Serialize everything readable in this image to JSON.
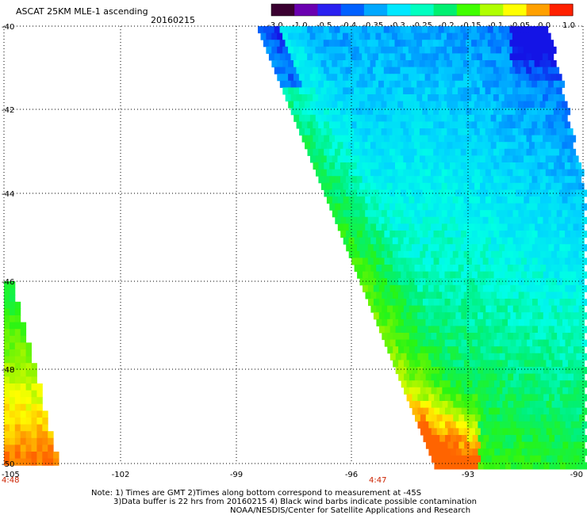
{
  "header": {
    "title": "ASCAT 25KM MLE-1 ascending",
    "date": "20160215"
  },
  "colorbar": {
    "labels": [
      "-3.0",
      "-1.0",
      "-0.5",
      "-0.4",
      "-0.35",
      "-0.3",
      "-0.25",
      "-0.2",
      "-0.15",
      "-0.1",
      "-0.05",
      "0.0",
      "1.0"
    ],
    "colors": [
      "#3a0030",
      "#6a00b0",
      "#2a20f0",
      "#0060ff",
      "#00a8ff",
      "#00e8ff",
      "#00ffc0",
      "#00f070",
      "#40ff00",
      "#b0ff00",
      "#ffff00",
      "#ffa000",
      "#ff2000"
    ]
  },
  "map": {
    "lat_labels": [
      "-40",
      "-42",
      "-44",
      "-46",
      "-48",
      "-50"
    ],
    "lon_labels": [
      "-105",
      "-102",
      "-99",
      "-96",
      "-93",
      "-90"
    ],
    "time_labels": [
      "4:48",
      "4:47"
    ]
  },
  "footer": {
    "line1": "Note: 1) Times are GMT 2)Times along bottom correspond to measurement at -45S",
    "line2": "3)Data buffer is 22 hrs from 20160215 4) Black wind barbs indicate possible contamination",
    "line3": "NOAA/NESDIS/Center for Satellite Applications and Research"
  }
}
